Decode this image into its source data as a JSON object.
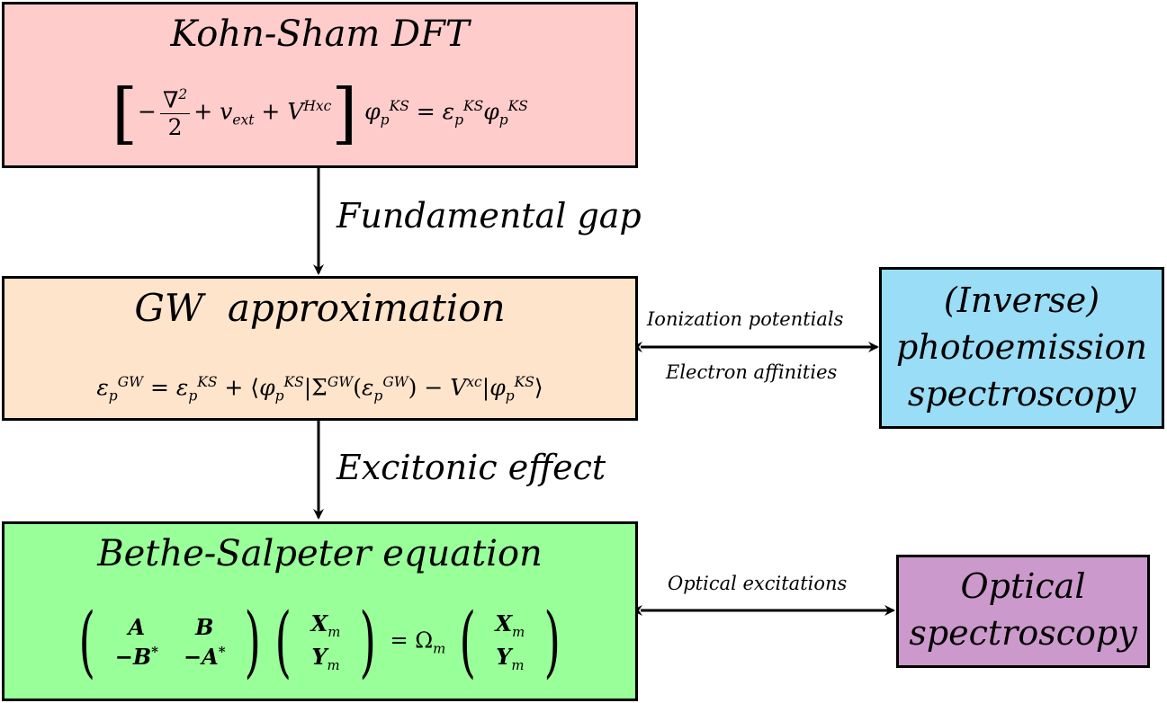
{
  "boxes": {
    "ks": {
      "title": "Kohn-Sham DFT",
      "equation": "[−∇²/2 + v_ext + V^Hxc] φ_p^KS = ε_p^KS φ_p^KS",
      "color": "#ffcccc"
    },
    "gw": {
      "title_gw": "GW",
      "title_rest": "approximation",
      "equation": "ε_p^GW = ε_p^KS + ⟨φ_p^KS|Σ^GW(ε_p^GW) − V^xc|φ_p^KS⟩",
      "color": "#ffe4cc"
    },
    "bse": {
      "title": "Bethe-Salpeter equation",
      "equation": "(A B; −B* −A*)(X_m; Y_m) = Ω_m (X_m; Y_m)",
      "color": "#99ff99"
    },
    "ipes": {
      "line1": "(Inverse)",
      "line2": "photoemission",
      "line3": "spectroscopy",
      "color": "#99ddf7"
    },
    "optical": {
      "line1": "Optical",
      "line2": "spectroscopy",
      "color": "#cc99cc"
    }
  },
  "arrows": {
    "ks_to_gw": "Fundamental gap",
    "gw_to_bse": "Excitonic effect",
    "gw_ipes_top": "Ionization potentials",
    "gw_ipes_bottom": "Electron affinities",
    "bse_optical": "Optical excitations"
  },
  "symbols": {
    "nabla_sq": "∇",
    "two": "2",
    "v_ext": "v",
    "ext": "ext",
    "V": "V",
    "Hxc": "Hxc",
    "phi": "φ",
    "eps": "ε",
    "p": "p",
    "KS": "KS",
    "GW": "GW",
    "Sigma": "Σ",
    "xc": "xc",
    "A": "A",
    "B": "B",
    "minus_B_star": "−B",
    "minus_A_star": "−A",
    "star": "*",
    "X": "X",
    "Y": "Y",
    "m": "m",
    "Omega": "Ω"
  }
}
